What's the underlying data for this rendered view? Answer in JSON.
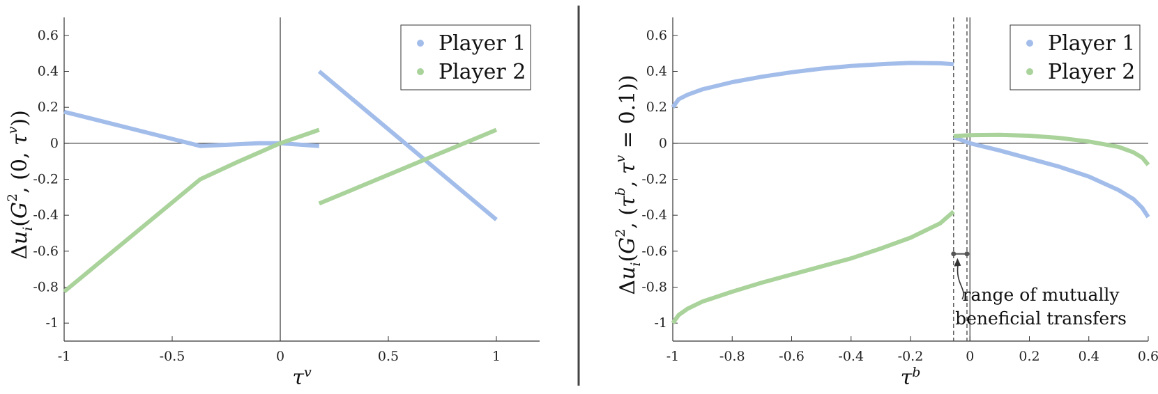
{
  "colors": {
    "player1": "#a3bdea",
    "player2": "#a9d39a",
    "axis": "#333333",
    "divider": "#444444"
  },
  "chart_data": [
    {
      "type": "line",
      "xlabel": "τv",
      "ylabel": "Δui(G2, (0, τv))",
      "xlim": [
        -1,
        1.2
      ],
      "ylim": [
        -1.1,
        0.7
      ],
      "xticks": [
        -1,
        -0.5,
        0,
        0.5,
        1
      ],
      "xtick_labels": [
        "-1",
        "-0.5",
        "0",
        "0.5",
        "1"
      ],
      "yticks": [
        0.6,
        0.4,
        0.2,
        0,
        -0.2,
        -0.4,
        -0.6,
        -0.8,
        -1
      ],
      "ytick_labels": [
        "0.6",
        "0.4",
        "0.2",
        "0",
        "-0.2",
        "-0.4",
        "-0.6",
        "-0.8",
        "-1"
      ],
      "legend": {
        "position": "top-right",
        "entries": [
          "Player 1",
          "Player 2"
        ]
      },
      "series": [
        {
          "name": "Player 1",
          "segments": [
            [
              [
                -1,
                0.175
              ],
              [
                -0.37,
                -0.015
              ],
              [
                -0.1,
                0.0
              ],
              [
                0,
                0.0
              ],
              [
                0.18,
                -0.015
              ]
            ],
            [
              [
                0.18,
                0.4
              ],
              [
                1,
                -0.425
              ]
            ]
          ]
        },
        {
          "name": "Player 2",
          "segments": [
            [
              [
                -1,
                -0.825
              ],
              [
                -0.37,
                -0.2
              ],
              [
                -0.2,
                -0.105
              ],
              [
                0,
                0.0
              ],
              [
                0.18,
                0.075
              ]
            ],
            [
              [
                0.18,
                -0.335
              ],
              [
                1,
                0.075
              ]
            ]
          ]
        }
      ]
    },
    {
      "type": "line",
      "xlabel": "τb",
      "ylabel": "Δui(G2, (τb, τv = 0.1))",
      "xlim": [
        -1,
        0.6
      ],
      "ylim": [
        -1.1,
        0.7
      ],
      "xticks": [
        -1,
        -0.8,
        -0.6,
        -0.4,
        -0.2,
        0,
        0.2,
        0.4,
        0.6
      ],
      "xtick_labels": [
        "-1",
        "-0.8",
        "-0.6",
        "-0.4",
        "-0.2",
        "0",
        "0.2",
        "0.4",
        "0.6"
      ],
      "yticks": [
        0.6,
        0.4,
        0.2,
        0,
        -0.2,
        -0.4,
        -0.6,
        -0.8,
        -1
      ],
      "ytick_labels": [
        "0.6",
        "0.4",
        "0.2",
        "0",
        "-0.2",
        "-0.4",
        "-0.6",
        "-0.8",
        "-1"
      ],
      "legend": {
        "position": "top-right",
        "entries": [
          "Player 1",
          "Player 2"
        ]
      },
      "range_lines": [
        -0.055,
        -0.01
      ],
      "range_marker_y": -0.615,
      "annotation": {
        "line1": "range of mutually",
        "line2": "beneficial transfers"
      },
      "series": [
        {
          "name": "Player 1",
          "segments": [
            [
              [
                -1,
                0.2
              ],
              [
                -0.98,
                0.245
              ],
              [
                -0.95,
                0.27
              ],
              [
                -0.9,
                0.3
              ],
              [
                -0.8,
                0.34
              ],
              [
                -0.7,
                0.37
              ],
              [
                -0.6,
                0.395
              ],
              [
                -0.5,
                0.415
              ],
              [
                -0.4,
                0.43
              ],
              [
                -0.3,
                0.44
              ],
              [
                -0.2,
                0.447
              ],
              [
                -0.1,
                0.445
              ],
              [
                -0.055,
                0.44
              ]
            ],
            [
              [
                -0.055,
                0.035
              ],
              [
                0,
                0.0
              ],
              [
                0.1,
                -0.04
              ],
              [
                0.2,
                -0.085
              ],
              [
                0.3,
                -0.13
              ],
              [
                0.4,
                -0.185
              ],
              [
                0.5,
                -0.26
              ],
              [
                0.55,
                -0.31
              ],
              [
                0.58,
                -0.36
              ],
              [
                0.6,
                -0.41
              ]
            ]
          ]
        },
        {
          "name": "Player 2",
          "segments": [
            [
              [
                -1,
                -1.0
              ],
              [
                -0.98,
                -0.955
              ],
              [
                -0.95,
                -0.92
              ],
              [
                -0.9,
                -0.88
              ],
              [
                -0.8,
                -0.825
              ],
              [
                -0.7,
                -0.775
              ],
              [
                -0.6,
                -0.73
              ],
              [
                -0.5,
                -0.685
              ],
              [
                -0.4,
                -0.64
              ],
              [
                -0.3,
                -0.585
              ],
              [
                -0.2,
                -0.525
              ],
              [
                -0.1,
                -0.445
              ],
              [
                -0.055,
                -0.38
              ]
            ],
            [
              [
                -0.055,
                0.04
              ],
              [
                0,
                0.045
              ],
              [
                0.1,
                0.047
              ],
              [
                0.2,
                0.042
              ],
              [
                0.3,
                0.03
              ],
              [
                0.4,
                0.01
              ],
              [
                0.5,
                -0.02
              ],
              [
                0.55,
                -0.05
              ],
              [
                0.58,
                -0.08
              ],
              [
                0.6,
                -0.12
              ]
            ]
          ]
        }
      ]
    }
  ]
}
